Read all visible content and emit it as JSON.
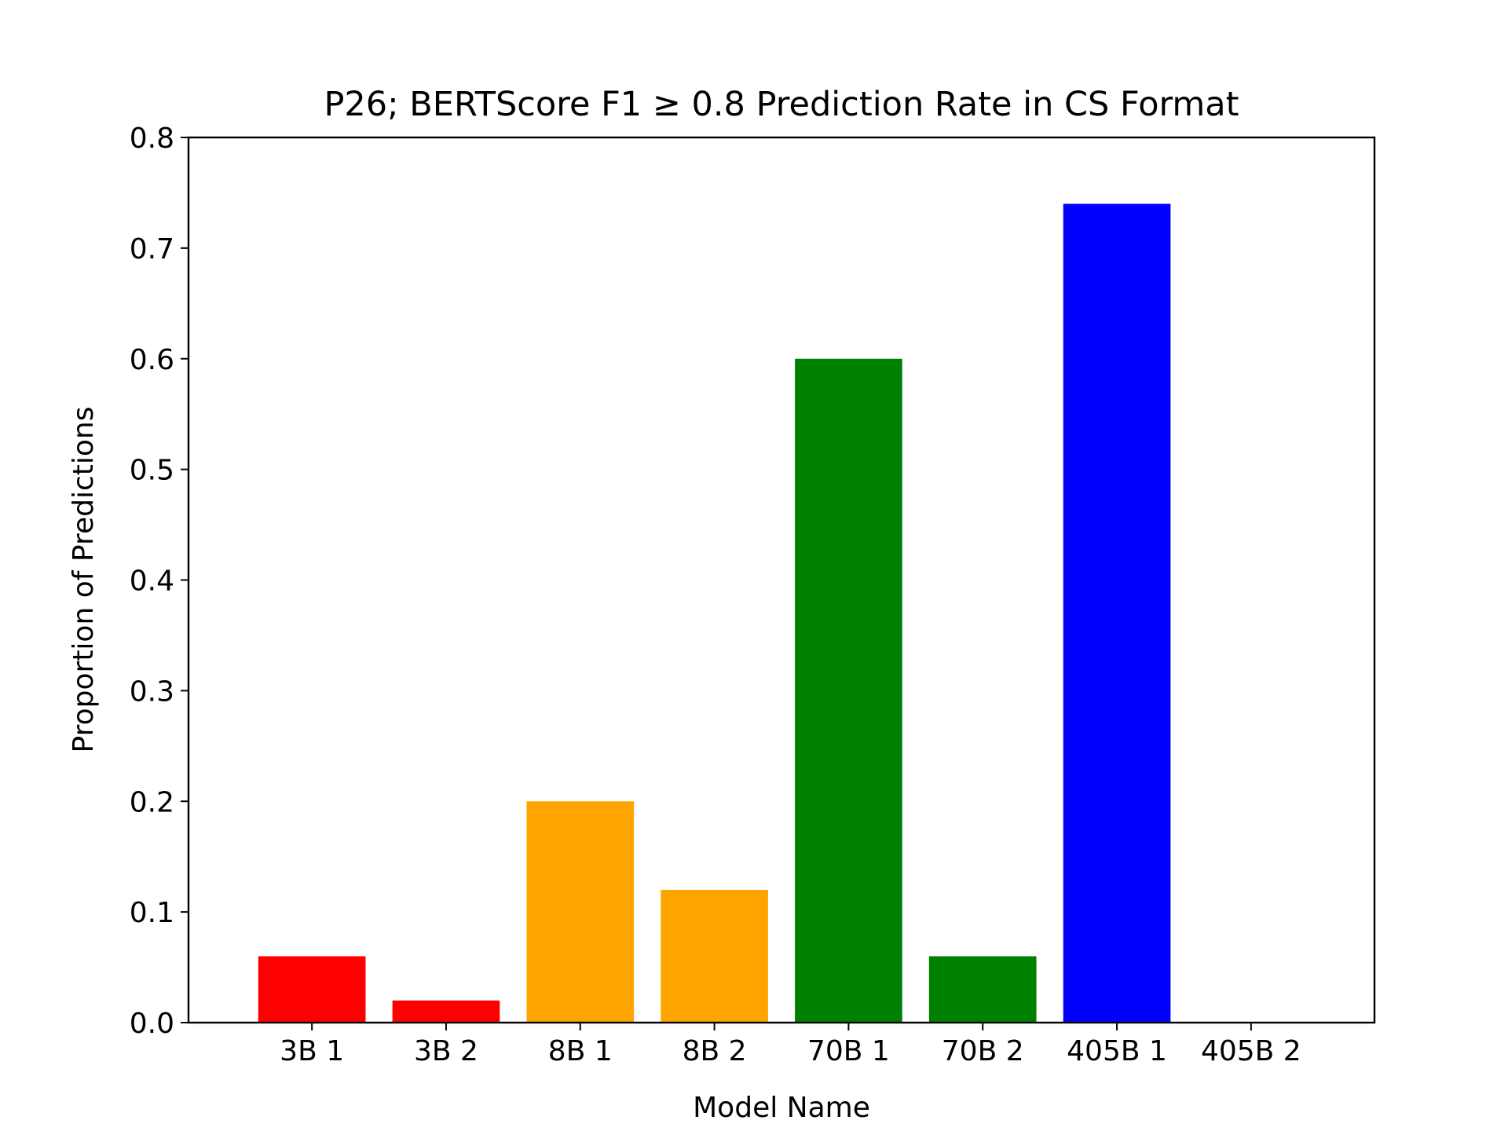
{
  "chart_data": {
    "type": "bar",
    "title": "P26; BERTScore F1 ≥ 0.8 Prediction Rate in CS Format",
    "xlabel": "Model Name",
    "ylabel": "Proportion of Predictions",
    "categories": [
      "3B 1",
      "3B 2",
      "8B 1",
      "8B 2",
      "70B 1",
      "70B 2",
      "405B 1",
      "405B 2"
    ],
    "values": [
      0.06,
      0.02,
      0.2,
      0.12,
      0.6,
      0.06,
      0.74,
      0.0
    ],
    "colors": [
      "#ff0000",
      "#ff0000",
      "#ffa500",
      "#ffa500",
      "#008000",
      "#008000",
      "#0000ff",
      "#0000ff"
    ],
    "ylim": [
      0,
      0.8
    ],
    "yticks": [
      0.0,
      0.1,
      0.2,
      0.3,
      0.4,
      0.5,
      0.6,
      0.7,
      0.8
    ],
    "ytick_labels": [
      "0.0",
      "0.1",
      "0.2",
      "0.3",
      "0.4",
      "0.5",
      "0.6",
      "0.7",
      "0.8"
    ],
    "grid": false,
    "legend": null
  }
}
